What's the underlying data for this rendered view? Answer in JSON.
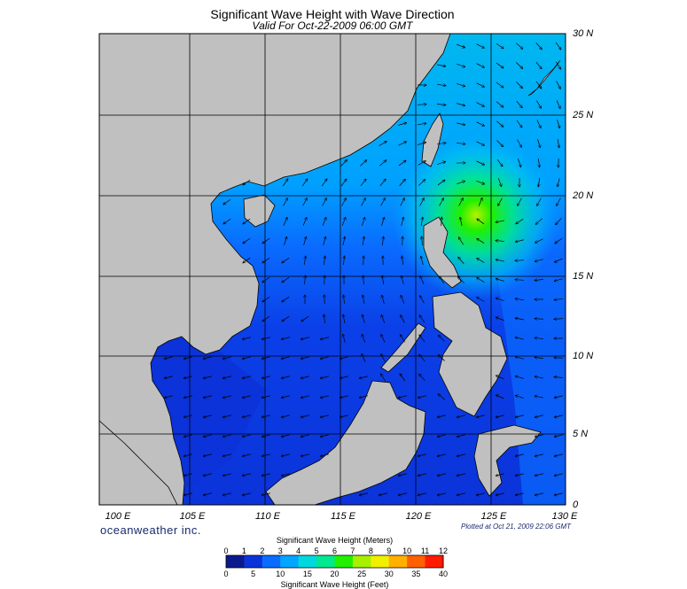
{
  "header": {
    "title": "Significant Wave Height with Wave Direction",
    "subtitle": "Valid For Oct-22-2009 06:00 GMT"
  },
  "axes": {
    "latitude_labels": [
      "30 N",
      "25 N",
      "20 N",
      "15 N",
      "10 N",
      "5 N",
      "0"
    ],
    "longitude_labels": [
      "100 E",
      "105 E",
      "110 E",
      "115 E",
      "120 E",
      "125 E",
      "130 E"
    ],
    "lat_range": [
      0,
      30
    ],
    "lon_range": [
      99,
      130
    ]
  },
  "footer": {
    "brand": "oceanweather inc.",
    "plotted": "Plotted at Oct 21, 2009 22:06 GMT"
  },
  "colorbar": {
    "top_title": "Significant Wave Height (Meters)",
    "bottom_title": "Significant Wave Height (Feet)",
    "meters_ticks": [
      "0",
      "1",
      "2",
      "3",
      "4",
      "5",
      "6",
      "7",
      "8",
      "9",
      "10",
      "11",
      "12"
    ],
    "feet_ticks": [
      "0",
      "5",
      "10",
      "15",
      "20",
      "25",
      "30",
      "35",
      "40"
    ],
    "colors": [
      "#0a1a8c",
      "#0b33d9",
      "#0a6cff",
      "#00a6ff",
      "#00d8e0",
      "#00e890",
      "#22f000",
      "#a8f000",
      "#f0f000",
      "#ffb000",
      "#ff6000",
      "#ff1a00"
    ]
  },
  "map_colors": {
    "land": "#c0c0c0",
    "deep_low": "#0a1a8c",
    "low": "#0b3fe8",
    "mid": "#0a78ff",
    "high": "#00c6ee",
    "peak": "#2ef05a"
  },
  "storm_center": {
    "lon": 124.5,
    "lat": 19.3,
    "max_height_m": 7
  }
}
